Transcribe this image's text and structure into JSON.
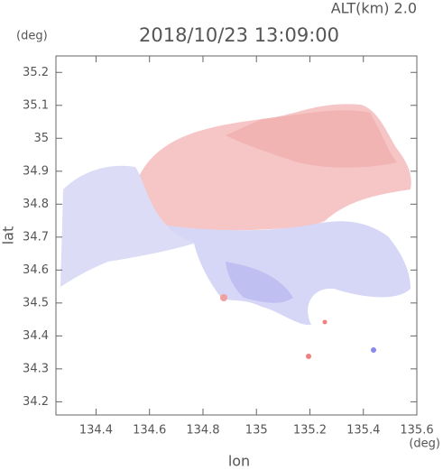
{
  "chart_data": {
    "type": "map",
    "subtitle": "ALT(km) 2.0",
    "title": "2018/10/23 13:09:00",
    "y_unit": "(deg)",
    "x_unit": "(deg)",
    "x_label": "lon",
    "y_label": "lat",
    "xlim": [
      134.25,
      135.6
    ],
    "ylim": [
      34.16,
      35.25
    ],
    "xticks": [
      134.4,
      134.6,
      134.8,
      135.0,
      135.2,
      135.4,
      135.6
    ],
    "yticks": [
      34.2,
      34.3,
      34.4,
      34.5,
      34.6,
      34.7,
      34.8,
      34.9,
      35.0,
      35.1,
      35.2
    ]
  }
}
